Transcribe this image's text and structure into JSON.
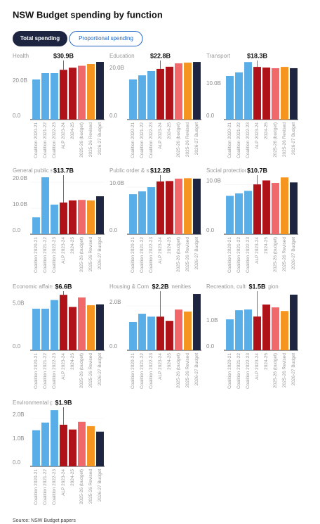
{
  "header": {
    "title": "NSW Budget spending by function",
    "tabs": [
      "Total spending",
      "Proportional spending"
    ]
  },
  "source": "Source: NSW Budget papers",
  "chart_data": [
    {
      "type": "bar",
      "title": "Health",
      "annotation": "$30.9B",
      "categories": [
        "Coalition 2020-21",
        "Coalition 2021-22",
        "Coalition 2022-23",
        "ALP 2023-24",
        "2024-25",
        "2025-26 (budget)",
        "2025-26 Revised",
        "2026-27 Budget"
      ],
      "values": [
        22.8,
        26.4,
        26.4,
        28.3,
        29.5,
        30.6,
        31.6,
        32.8
      ],
      "colors": [
        "#5aaee8",
        "#5aaee8",
        "#5aaee8",
        "#b0121a",
        "#b0121a",
        "#f0686a",
        "#f5951f",
        "#1e2540"
      ],
      "ylim": [
        0,
        34
      ],
      "yticks": [
        {
          "value": 0,
          "label": "0.0"
        },
        {
          "value": 20,
          "label": "20.0B"
        }
      ]
    },
    {
      "type": "bar",
      "title": "Education",
      "annotation": "$22.8B",
      "categories": [
        "Coalition 2020-21",
        "Coalition 2021-22",
        "Coalition 2022-23",
        "ALP 2023-24",
        "2024-25",
        "2025-26 (budget)",
        "2025-26 Revised",
        "2026-27 Budget"
      ],
      "values": [
        16.8,
        18.5,
        20.3,
        21.2,
        22.1,
        23.5,
        23.8,
        24.1
      ],
      "colors": [
        "#5aaee8",
        "#5aaee8",
        "#5aaee8",
        "#b0121a",
        "#b0121a",
        "#f0686a",
        "#f5951f",
        "#1e2540"
      ],
      "ylim": [
        0,
        25
      ],
      "yticks": [
        {
          "value": 0,
          "label": "0.0"
        },
        {
          "value": 20,
          "label": "20.0B"
        }
      ]
    },
    {
      "type": "bar",
      "title": "Transport",
      "annotation": "$18.3B",
      "categories": [
        "Coalition 2020-21",
        "Coalition 2021-22",
        "Coalition 2022-23",
        "ALP 2023-24",
        "2024-25",
        "2025-26 (budget)",
        "2025-26 Revised",
        "2026-27 Budget"
      ],
      "values": [
        13.5,
        14.6,
        17.8,
        16.3,
        16.1,
        15.9,
        16.3,
        15.9
      ],
      "colors": [
        "#5aaee8",
        "#5aaee8",
        "#5aaee8",
        "#b0121a",
        "#b0121a",
        "#f0686a",
        "#f5951f",
        "#1e2540"
      ],
      "ylim": [
        0,
        18.5
      ],
      "yticks": [
        {
          "value": 0,
          "label": "0.0"
        },
        {
          "value": 10,
          "label": "10.0B"
        }
      ]
    },
    {
      "type": "bar",
      "title": "General public services",
      "annotation": "$13.7B",
      "categories": [
        "Coalition 2020-21",
        "Coalition 2021-22",
        "Coalition 2022-23",
        "ALP 2023-24",
        "2024-25",
        "2025-26 (budget)",
        "2025-26 Revised",
        "2026-27 Budget"
      ],
      "values": [
        6.5,
        21.9,
        11.4,
        12.2,
        13.0,
        13.2,
        13.0,
        14.6
      ],
      "colors": [
        "#5aaee8",
        "#5aaee8",
        "#5aaee8",
        "#b0121a",
        "#b0121a",
        "#f0686a",
        "#f5951f",
        "#1e2540"
      ],
      "ylim": [
        0,
        23
      ],
      "yticks": [
        {
          "value": 0,
          "label": "0.0"
        },
        {
          "value": 10,
          "label": "10.0B"
        },
        {
          "value": 20,
          "label": "20.0B"
        }
      ]
    },
    {
      "type": "bar",
      "title": "Public order & safety",
      "annotation": "$12.2B",
      "categories": [
        "Coalition 2020-21",
        "Coalition 2021-22",
        "Coalition 2022-23",
        "ALP 2023-24",
        "2024-25",
        "2025-26 (budget)",
        "2025-26 Revised",
        "2026-27 Budget"
      ],
      "values": [
        8.5,
        9.1,
        10.0,
        11.2,
        11.3,
        11.8,
        11.9,
        11.8
      ],
      "colors": [
        "#5aaee8",
        "#5aaee8",
        "#5aaee8",
        "#b0121a",
        "#b0121a",
        "#f0686a",
        "#f5951f",
        "#1e2540"
      ],
      "ylim": [
        0,
        12.7
      ],
      "yticks": [
        {
          "value": 0,
          "label": "0.0"
        },
        {
          "value": 10,
          "label": "10.0B"
        }
      ]
    },
    {
      "type": "bar",
      "title": "Social protection",
      "annotation": "$10.7B",
      "categories": [
        "Coalition 2020-21",
        "Coalition 2021-22",
        "Coalition 2022-23",
        "ALP 2023-24",
        "2024-25",
        "2025-26 (budget)",
        "2025-26 Revised",
        "2026-27 Budget"
      ],
      "values": [
        7.7,
        8.2,
        8.7,
        10.0,
        10.8,
        10.3,
        11.4,
        10.4
      ],
      "colors": [
        "#5aaee8",
        "#5aaee8",
        "#5aaee8",
        "#b0121a",
        "#b0121a",
        "#f0686a",
        "#f5951f",
        "#1e2540"
      ],
      "ylim": [
        0,
        12
      ],
      "yticks": [
        {
          "value": 0,
          "label": "0.0"
        },
        {
          "value": 10,
          "label": "10.0B"
        }
      ]
    },
    {
      "type": "bar",
      "title": "Economic affairs",
      "annotation": "$6.6B",
      "categories": [
        "Coalition 2020-21",
        "Coalition 2021-22",
        "Coalition 2022-23",
        "ALP 2023-24",
        "2024-25",
        "2025-26 (budget)",
        "2025-26 Revised",
        "2026-27 Budget"
      ],
      "values": [
        4.8,
        4.8,
        5.8,
        6.4,
        5.0,
        6.1,
        5.2,
        5.3
      ],
      "colors": [
        "#5aaee8",
        "#5aaee8",
        "#5aaee8",
        "#b0121a",
        "#b0121a",
        "#f0686a",
        "#f5951f",
        "#1e2540"
      ],
      "ylim": [
        0,
        6.9
      ],
      "yticks": [
        {
          "value": 0,
          "label": "0.0"
        },
        {
          "value": 5,
          "label": "5.0B"
        }
      ]
    },
    {
      "type": "bar",
      "title": "Housing & Community amenities",
      "annotation": "$2.2B",
      "categories": [
        "Coalition 2020-21",
        "Coalition 2021-22",
        "Coalition 2022-23",
        "ALP 2023-24",
        "2024-25",
        "2025-26 (budget)",
        "2025-26 Revised",
        "2026-27 Budget"
      ],
      "values": [
        1.27,
        1.65,
        1.52,
        1.52,
        1.33,
        1.84,
        1.75,
        2.54
      ],
      "colors": [
        "#5aaee8",
        "#5aaee8",
        "#5aaee8",
        "#b0121a",
        "#b0121a",
        "#f0686a",
        "#f5951f",
        "#1e2540"
      ],
      "ylim": [
        0,
        2.7
      ],
      "yticks": [
        {
          "value": 0,
          "label": "0.0"
        },
        {
          "value": 2,
          "label": "2.0B"
        }
      ]
    },
    {
      "type": "bar",
      "title": "Recreation, culture & religion",
      "annotation": "$1.5B",
      "categories": [
        "Coalition 2020-21",
        "Coalition 2021-22",
        "Coalition 2022-23",
        "ALP 2023-24",
        "2024-25",
        "2025-26 (budget)",
        "2025-26 Revised",
        "2026-27 Budget"
      ],
      "values": [
        1.19,
        1.54,
        1.57,
        1.3,
        1.76,
        1.65,
        1.51,
        2.14
      ],
      "colors": [
        "#5aaee8",
        "#5aaee8",
        "#5aaee8",
        "#b0121a",
        "#b0121a",
        "#f0686a",
        "#f5951f",
        "#1e2540"
      ],
      "ylim": [
        0,
        2.3
      ],
      "yticks": [
        {
          "value": 0,
          "label": "0.0"
        },
        {
          "value": 1,
          "label": "1.0B"
        }
      ]
    },
    {
      "type": "bar",
      "title": "Environmental protection",
      "annotation": "$1.9B",
      "categories": [
        "Coalition 2020-21",
        "Coalition 2021-22",
        "Coalition 2022-23",
        "ALP 2023-24",
        "2024-25",
        "2025-26 (budget)",
        "2025-26 Revised",
        "2026-27 Budget"
      ],
      "values": [
        1.51,
        1.83,
        2.35,
        1.74,
        1.54,
        1.86,
        1.68,
        1.45
      ],
      "colors": [
        "#5aaee8",
        "#5aaee8",
        "#5aaee8",
        "#b0121a",
        "#b0121a",
        "#f0686a",
        "#f5951f",
        "#1e2540"
      ],
      "ylim": [
        0,
        2.5
      ],
      "yticks": [
        {
          "value": 0,
          "label": "0.0"
        },
        {
          "value": 1,
          "label": "1.0B"
        },
        {
          "value": 2,
          "label": "2.0B"
        }
      ]
    }
  ]
}
